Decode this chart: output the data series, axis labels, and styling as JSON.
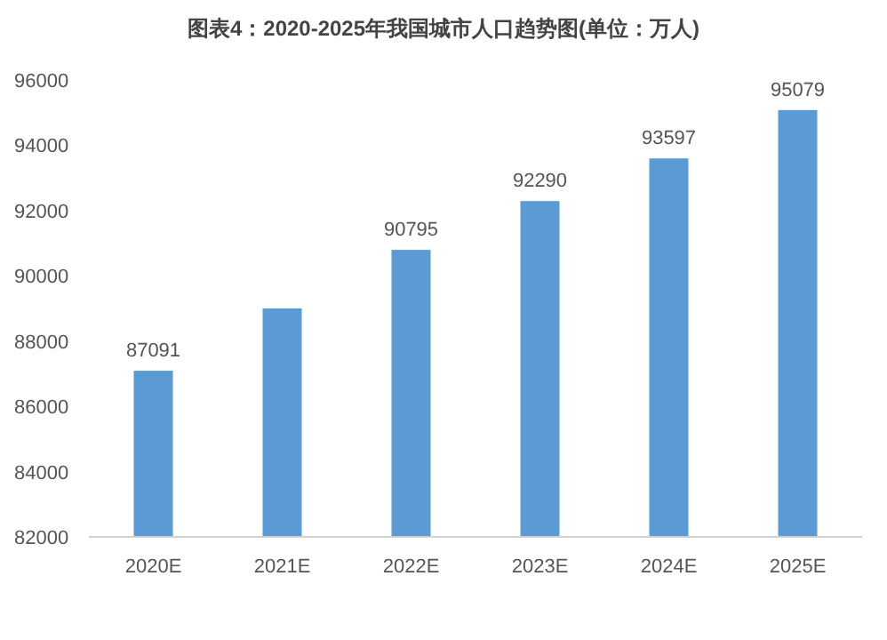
{
  "chart_data": {
    "type": "bar",
    "title": "图表4：2020-2025年我国城市人口趋势图(单位：万人)",
    "categories": [
      "2020E",
      "2021E",
      "2022E",
      "2023E",
      "2024E",
      "2025E"
    ],
    "values": [
      87091,
      89000,
      90795,
      92290,
      93597,
      95079
    ],
    "value_labels": [
      "87091",
      null,
      "90795",
      "92290",
      "93597",
      "95079"
    ],
    "color": "#5b9bd5",
    "ylim": [
      82000,
      96000
    ],
    "yticks": [
      82000,
      84000,
      86000,
      88000,
      90000,
      92000,
      94000,
      96000
    ],
    "grid": false
  }
}
